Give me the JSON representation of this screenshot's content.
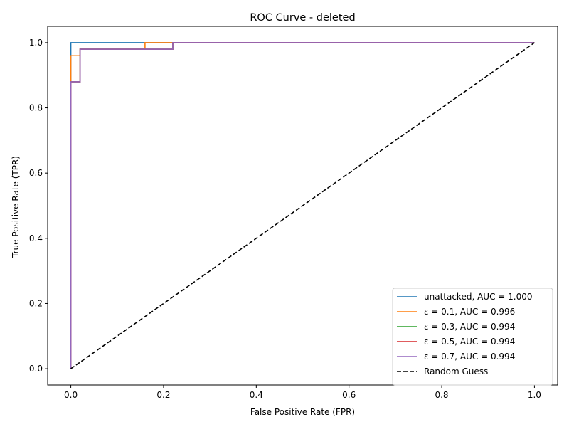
{
  "chart_data": {
    "type": "line",
    "title": "ROC Curve - deleted",
    "xlabel": "False Positive Rate (FPR)",
    "ylabel": "True Positive Rate (TPR)",
    "xlim": [
      -0.05,
      1.05
    ],
    "ylim": [
      -0.05,
      1.05
    ],
    "xticks": [
      0.0,
      0.2,
      0.4,
      0.6,
      0.8,
      1.0
    ],
    "yticks": [
      0.0,
      0.2,
      0.4,
      0.6,
      0.8,
      1.0
    ],
    "xtick_labels": [
      "0.0",
      "0.2",
      "0.4",
      "0.6",
      "0.8",
      "1.0"
    ],
    "ytick_labels": [
      "0.0",
      "0.2",
      "0.4",
      "0.6",
      "0.8",
      "1.0"
    ],
    "grid": false,
    "legend_position": "lower-right",
    "series": [
      {
        "name": "unattacked, AUC = 1.000",
        "color": "#1f77b4",
        "dash": "solid",
        "x": [
          0.0,
          0.0,
          1.0
        ],
        "y": [
          0.0,
          1.0,
          1.0
        ]
      },
      {
        "name": "ε = 0.1, AUC = 0.996",
        "color": "#ff7f0e",
        "dash": "solid",
        "x": [
          0.0,
          0.0,
          0.02,
          0.02,
          0.16,
          0.16,
          1.0
        ],
        "y": [
          0.0,
          0.96,
          0.96,
          0.98,
          0.98,
          1.0,
          1.0
        ]
      },
      {
        "name": "ε = 0.3, AUC = 0.994",
        "color": "#2ca02c",
        "dash": "solid",
        "x": [
          0.0,
          0.0,
          0.02,
          0.02,
          0.22,
          0.22,
          1.0
        ],
        "y": [
          0.0,
          0.88,
          0.88,
          0.98,
          0.98,
          1.0,
          1.0
        ]
      },
      {
        "name": "ε = 0.5, AUC = 0.994",
        "color": "#d62728",
        "dash": "solid",
        "x": [
          0.0,
          0.0,
          0.02,
          0.02,
          0.22,
          0.22,
          1.0
        ],
        "y": [
          0.0,
          0.88,
          0.88,
          0.98,
          0.98,
          1.0,
          1.0
        ]
      },
      {
        "name": "ε = 0.7, AUC = 0.994",
        "color": "#9467bd",
        "dash": "solid",
        "x": [
          0.0,
          0.0,
          0.02,
          0.02,
          0.22,
          0.22,
          1.0
        ],
        "y": [
          0.0,
          0.88,
          0.88,
          0.98,
          0.98,
          1.0,
          1.0
        ]
      },
      {
        "name": "Random Guess",
        "color": "#000000",
        "dash": "dashed",
        "x": [
          0.0,
          1.0
        ],
        "y": [
          0.0,
          1.0
        ]
      }
    ]
  }
}
